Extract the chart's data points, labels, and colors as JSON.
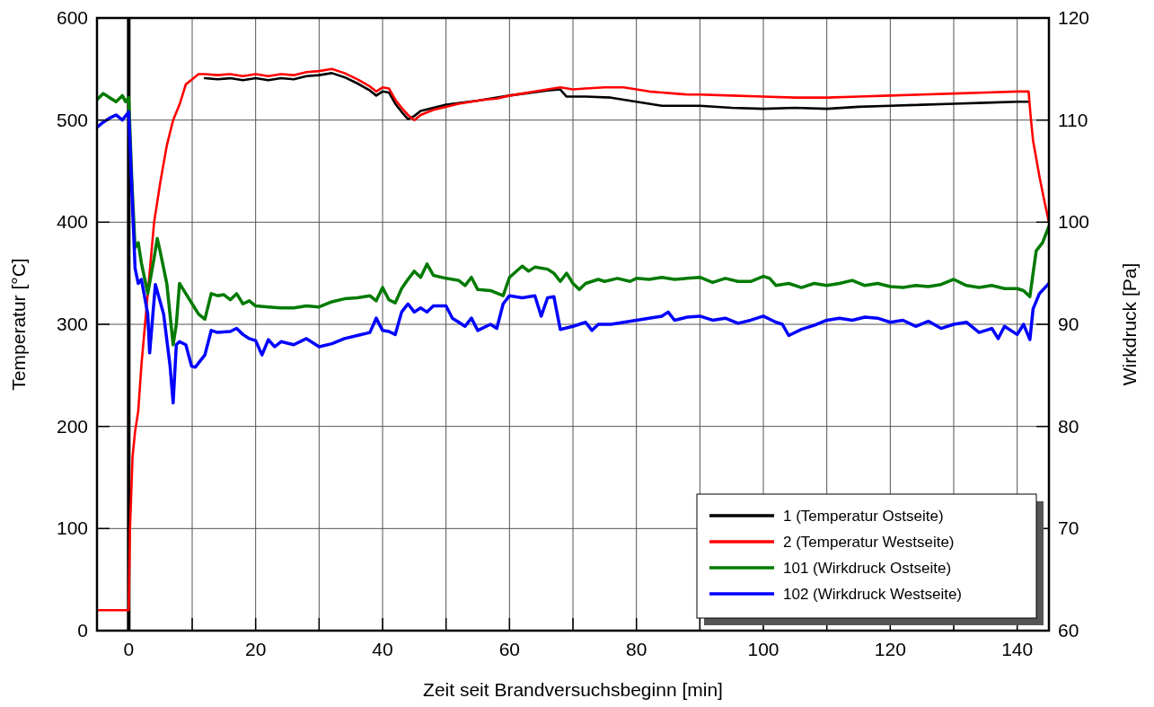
{
  "chart_data": {
    "type": "line",
    "xlabel": "Zeit seit Brandversuchsbeginn [min]",
    "ylabel": "Temperatur [°C]",
    "y2label": "Wirkdruck [Pa]",
    "xlim": [
      -5,
      145
    ],
    "xticks": [
      0,
      {
        "value": 10,
        "label": null
      },
      20,
      {
        "value": 30,
        "label": null
      },
      40,
      {
        "value": 50,
        "label": null
      },
      60,
      {
        "value": 70,
        "label": null
      },
      80,
      {
        "value": 90,
        "label": null
      },
      100,
      {
        "value": 110,
        "label": null
      },
      120,
      {
        "value": 130,
        "label": null
      },
      140
    ],
    "ylim": [
      0,
      600
    ],
    "yticks": [
      0,
      100,
      200,
      300,
      400,
      500,
      600
    ],
    "y2lim": [
      60,
      120
    ],
    "y2ticks": [
      60,
      70,
      80,
      90,
      100,
      110,
      120
    ],
    "grid": true,
    "legend": "bottom right",
    "line_style": "solid",
    "marker": "none",
    "ref_lines": [
      {
        "axis": "x",
        "value": 0,
        "color": "#000000"
      }
    ],
    "series": [
      {
        "name": "1 (Temperatur Ostseite)",
        "color": "#000000",
        "x": [
          12,
          14,
          16,
          18,
          20,
          22,
          24,
          26,
          28,
          30,
          32,
          34,
          36,
          38,
          39,
          40,
          41,
          42,
          43,
          44,
          45,
          46,
          50,
          55,
          60,
          66,
          68,
          69,
          72,
          76,
          80,
          84,
          90,
          95,
          100,
          105,
          110,
          115,
          120,
          125,
          130,
          135,
          140,
          141.8
        ],
        "values": [
          541,
          540,
          541,
          539,
          541,
          539,
          541,
          540,
          543,
          544,
          546,
          542,
          536,
          529,
          524,
          528,
          527,
          516,
          508,
          501,
          504,
          509,
          515,
          519,
          524,
          529,
          530,
          523,
          523,
          522,
          518,
          514,
          514,
          512,
          511,
          512,
          511,
          513,
          514,
          515,
          516,
          517,
          518,
          518
        ]
      },
      {
        "name": "2 (Temperatur Westseite)",
        "color": "#ff0000",
        "x": [
          -5,
          0,
          0.2,
          0.6,
          1,
          1.5,
          2,
          3,
          4,
          5,
          6,
          7,
          8,
          9,
          10,
          11,
          12,
          14,
          16,
          18,
          20,
          22,
          24,
          26,
          28,
          30,
          32,
          34,
          36,
          38,
          39,
          40,
          41,
          42,
          43,
          44,
          45,
          46,
          48,
          50,
          52,
          54,
          56,
          58,
          60,
          62,
          64,
          66,
          68,
          70,
          72,
          75,
          78,
          80,
          82,
          84,
          86,
          88,
          90,
          95,
          100,
          105,
          110,
          115,
          120,
          125,
          130,
          135,
          140,
          141.8,
          142.1,
          142.5,
          143.5,
          144.3,
          145
        ],
        "values": [
          20,
          20,
          100,
          170,
          195,
          215,
          260,
          330,
          400,
          440,
          475,
          500,
          515,
          535,
          540,
          545,
          545,
          544,
          545,
          543,
          545,
          543,
          545,
          544,
          547,
          548,
          550,
          546,
          540,
          533,
          528,
          532,
          531,
          520,
          512,
          505,
          500,
          505,
          510,
          513,
          516,
          518,
          520,
          521,
          524,
          526,
          528,
          530,
          532,
          530,
          531,
          532,
          532,
          530,
          528,
          527,
          526,
          525,
          525,
          524,
          523,
          522,
          522,
          523,
          524,
          525,
          526,
          527,
          528,
          528,
          505,
          480,
          445,
          420,
          400
        ]
      },
      {
        "name": "101 (Wirkdruck Ostseite)",
        "color": "#007a00",
        "axis": "y2",
        "x": [
          -5,
          -4,
          -3,
          -2,
          -1,
          -0.5,
          0,
          0.5,
          1,
          1.5,
          2,
          3,
          4,
          4.5,
          5,
          6,
          7,
          7.5,
          8,
          9,
          10,
          11,
          12,
          13,
          14,
          15,
          16,
          17,
          18,
          19,
          20,
          22,
          24,
          26,
          28,
          30,
          32,
          34,
          36,
          38,
          39,
          40,
          41,
          42,
          43,
          44,
          45,
          46,
          47,
          48,
          50,
          52,
          53,
          54,
          55,
          57,
          59,
          60,
          62,
          63,
          64,
          66,
          67,
          68,
          69,
          70,
          71,
          72,
          74,
          75,
          77,
          79,
          80,
          82,
          84,
          86,
          88,
          90,
          92,
          94,
          96,
          98,
          100,
          101,
          102,
          104,
          106,
          108,
          110,
          112,
          114,
          116,
          118,
          120,
          122,
          124,
          126,
          128,
          130,
          132,
          134,
          136,
          138,
          140,
          141,
          142,
          142.5,
          143,
          144,
          145
        ],
        "values": [
          112.0,
          112.6,
          112.2,
          111.8,
          112.4,
          111.8,
          112.2,
          104,
          97.5,
          98.0,
          96,
          93,
          96.5,
          98.4,
          97,
          94,
          88,
          90,
          94,
          93,
          92,
          91,
          90.5,
          93,
          92.8,
          92.9,
          92.4,
          93.0,
          92,
          92.3,
          91.8,
          91.7,
          91.6,
          91.6,
          91.8,
          91.7,
          92.2,
          92.5,
          92.6,
          92.8,
          92.3,
          93.6,
          92.4,
          92.1,
          93.5,
          94.4,
          95.2,
          94.6,
          95.9,
          94.8,
          94.5,
          94.3,
          93.8,
          94.6,
          93.4,
          93.3,
          92.8,
          94.6,
          95.7,
          95.2,
          95.6,
          95.4,
          95.0,
          94.2,
          95.0,
          94.0,
          93.4,
          94.0,
          94.4,
          94.2,
          94.5,
          94.2,
          94.5,
          94.4,
          94.6,
          94.4,
          94.5,
          94.6,
          94.1,
          94.5,
          94.2,
          94.2,
          94.7,
          94.5,
          93.8,
          94.0,
          93.6,
          94.0,
          93.8,
          94.0,
          94.3,
          93.8,
          94.0,
          93.7,
          93.6,
          93.8,
          93.7,
          93.9,
          94.4,
          93.8,
          93.6,
          93.8,
          93.5,
          93.5,
          93.3,
          92.7,
          95,
          97.2,
          98.0,
          99.6
        ]
      },
      {
        "name": "102 (Wirkdruck Westseite)",
        "color": "#0000ff",
        "axis": "y2",
        "x": [
          -5,
          -4,
          -3,
          -2,
          -1,
          0,
          0.5,
          1,
          1.5,
          2,
          3,
          3.3,
          4.2,
          5.5,
          6.5,
          7,
          7.5,
          8,
          9,
          9.9,
          10.5,
          11,
          12,
          13,
          14,
          16,
          17,
          18,
          19,
          20,
          21,
          22,
          23,
          24,
          26,
          28,
          30,
          32,
          34,
          36,
          38,
          39,
          40,
          41,
          42,
          43,
          44,
          45,
          46,
          47,
          48,
          50,
          51,
          53,
          54,
          55,
          57,
          58,
          59,
          60,
          62,
          64,
          65,
          66,
          67,
          68,
          70,
          72,
          73,
          74,
          76,
          78,
          80,
          82,
          84,
          85,
          86,
          88,
          90,
          92,
          94,
          96,
          98,
          100,
          102,
          103,
          104,
          106,
          108,
          110,
          112,
          114,
          116,
          118,
          120,
          122,
          124,
          126,
          128,
          130,
          132,
          134,
          136,
          137,
          138,
          140,
          141,
          142,
          142.5,
          143.5,
          145
        ],
        "values": [
          109.3,
          109.8,
          110.2,
          110.5,
          110.0,
          110.8,
          103,
          95.5,
          94.0,
          94.4,
          91.0,
          87.2,
          93.9,
          91,
          86,
          82.3,
          88.0,
          88.3,
          88.0,
          85.9,
          85.8,
          86.2,
          87.0,
          89.4,
          89.2,
          89.3,
          89.6,
          89.0,
          88.6,
          88.4,
          87.0,
          88.5,
          87.8,
          88.3,
          88.0,
          88.6,
          87.8,
          88.1,
          88.6,
          88.9,
          89.2,
          90.6,
          89.4,
          89.3,
          89.0,
          91.2,
          92.0,
          91.2,
          91.6,
          91.2,
          91.8,
          91.8,
          90.6,
          89.8,
          90.6,
          89.4,
          90.0,
          89.6,
          92.0,
          92.8,
          92.6,
          92.8,
          90.8,
          92.6,
          92.7,
          89.5,
          89.8,
          90.2,
          89.4,
          90.0,
          90.0,
          90.2,
          90.4,
          90.6,
          90.8,
          91.2,
          90.4,
          90.7,
          90.8,
          90.4,
          90.6,
          90.1,
          90.4,
          90.8,
          90.2,
          90.0,
          88.9,
          89.5,
          89.9,
          90.4,
          90.6,
          90.4,
          90.7,
          90.6,
          90.2,
          90.4,
          89.8,
          90.3,
          89.6,
          90.0,
          90.2,
          89.2,
          89.6,
          88.6,
          89.8,
          89.0,
          90.0,
          88.5,
          91.5,
          93.0,
          94.0
        ]
      }
    ]
  }
}
